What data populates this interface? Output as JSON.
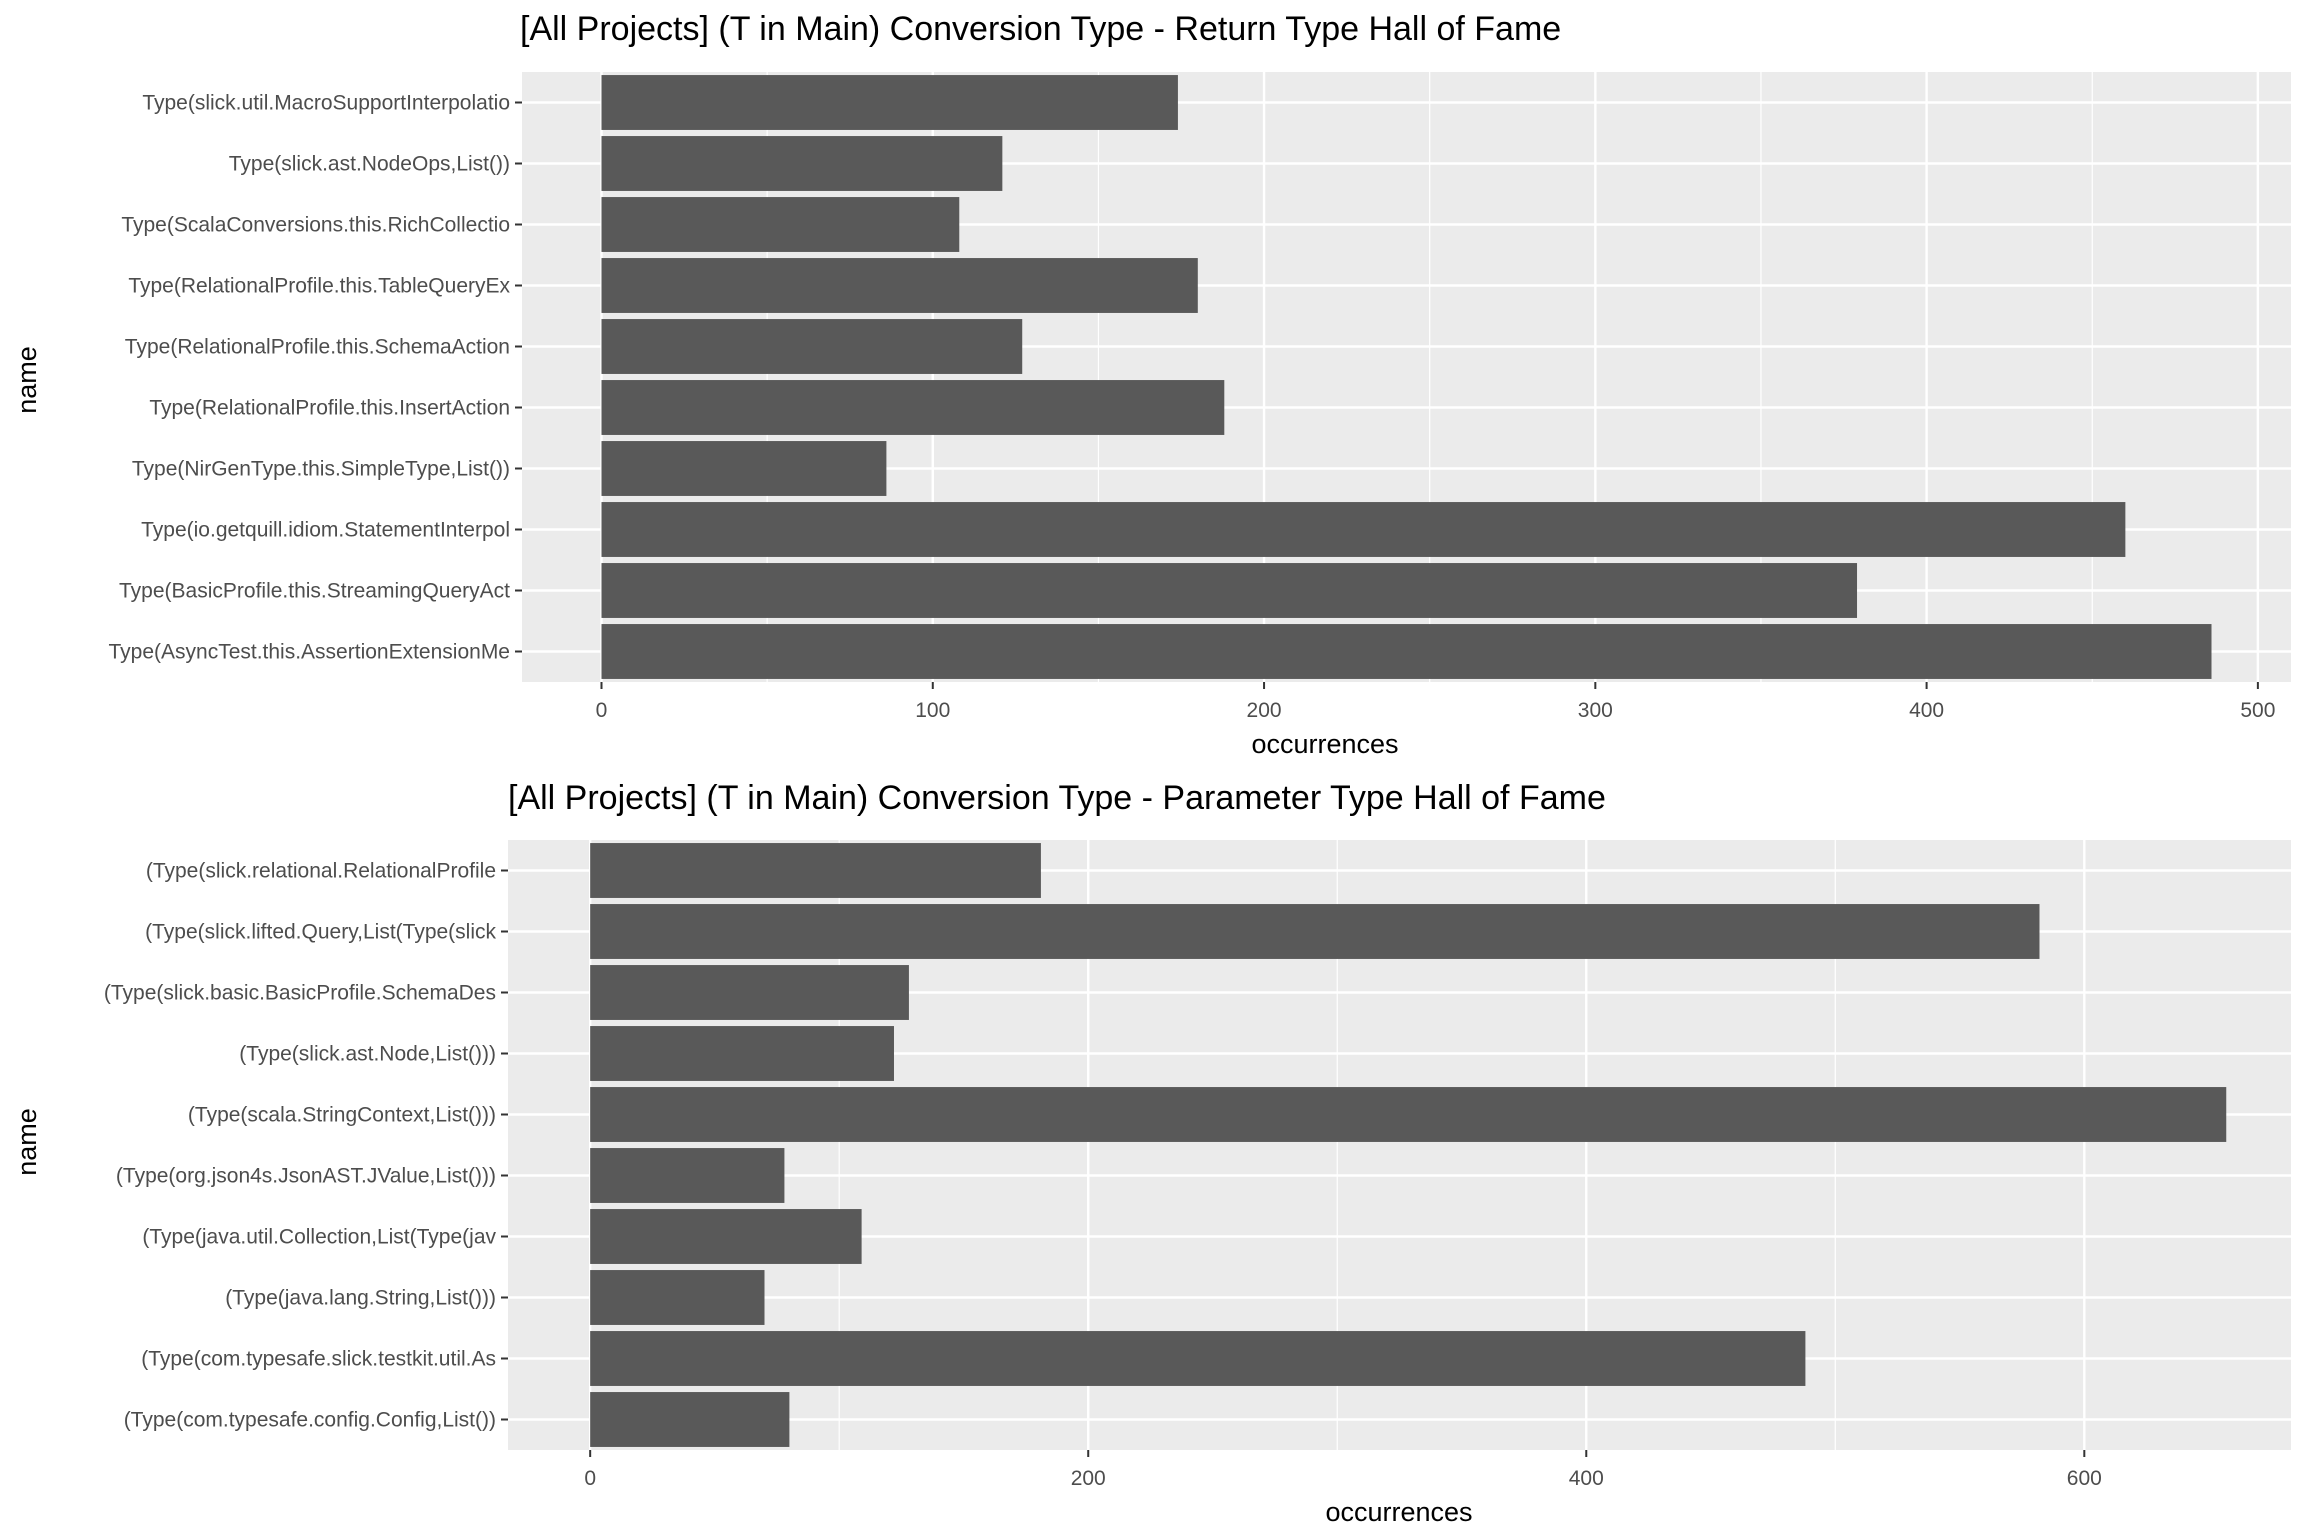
{
  "chart_data": [
    {
      "type": "bar",
      "orientation": "horizontal",
      "title": "[All Projects] (T in Main) Conversion Type - Return Type Hall of Fame",
      "xlabel": "occurrences",
      "ylabel": "name",
      "xlim": [
        -24,
        510
      ],
      "xticks": [
        0,
        100,
        200,
        300,
        400,
        500
      ],
      "categories": [
        "Type(slick.util.MacroSupportInterpolatio",
        "Type(slick.ast.NodeOps,List())",
        "Type(ScalaConversions.this.RichCollectio",
        "Type(RelationalProfile.this.TableQueryEx",
        "Type(RelationalProfile.this.SchemaAction",
        "Type(RelationalProfile.this.InsertAction",
        "Type(NirGenType.this.SimpleType,List())",
        "Type(io.getquill.idiom.StatementInterpol",
        "Type(BasicProfile.this.StreamingQueryAct",
        "Type(AsyncTest.this.AssertionExtensionMe"
      ],
      "values": [
        174,
        121,
        108,
        180,
        127,
        188,
        86,
        460,
        379,
        486
      ],
      "grid": true,
      "bar_color": "#595959",
      "panel_color": "#ebebeb"
    },
    {
      "type": "bar",
      "orientation": "horizontal",
      "title": "[All Projects] (T in Main) Conversion Type - Parameter Type Hall of Fame",
      "xlabel": "occurrences",
      "ylabel": "name",
      "xlim": [
        -33,
        683
      ],
      "xticks": [
        0,
        200,
        400,
        600
      ],
      "categories": [
        "(Type(slick.relational.RelationalProfile",
        "(Type(slick.lifted.Query,List(Type(slick",
        "(Type(slick.basic.BasicProfile.SchemaDes",
        "(Type(slick.ast.Node,List()))",
        "(Type(scala.StringContext,List()))",
        "(Type(org.json4s.JsonAST.JValue,List()))",
        "(Type(java.util.Collection,List(Type(jav",
        "(Type(java.lang.String,List()))",
        "(Type(com.typesafe.slick.testkit.util.As",
        "(Type(com.typesafe.config.Config,List())"
      ],
      "values": [
        181,
        582,
        128,
        122,
        657,
        78,
        109,
        70,
        488,
        80
      ],
      "grid": true,
      "bar_color": "#595959",
      "panel_color": "#ebebeb"
    }
  ]
}
